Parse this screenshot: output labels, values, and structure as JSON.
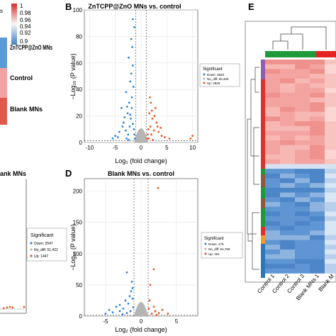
{
  "panels": {
    "a": {
      "legend_tick_top": "1",
      "legend_ticks": [
        "0.98",
        "0.96",
        "0.94",
        "0.92",
        "0.9"
      ],
      "legend_partial_label": "s",
      "group_labels": [
        "ZnTCPP@ZnO MNs",
        "Control",
        "Blank MNs"
      ],
      "colors": {
        "znt": "#5b9bd5",
        "control": "#f2a2a2",
        "blank": "#e05a4c"
      }
    },
    "b": {
      "letter": "B",
      "title": "ZnTCPP@ZnO MNs vs. control",
      "xlabel": "Log₂ (fold change)",
      "ylabel": "−Log₁₀ (P value)",
      "legend_title": "Significant",
      "legend_items": [
        "Down: 2828",
        "No_diff: 50,465",
        "Up: 2828"
      ]
    },
    "c": {
      "title_partial": "ank MNs",
      "legend_title": "Significant",
      "legend_items": [
        "Down: 3547",
        "No_diff: 51,422",
        "Up: 1447"
      ]
    },
    "d": {
      "letter": "D",
      "title": "Blank MNs vs. control",
      "xlabel": "Log₂ (fold change)",
      "ylabel": "−Log₁₀ (P value)",
      "legend_title": "Significant",
      "legend_items": [
        "Down: 476",
        "No_diff: 54,789",
        "Up: 151"
      ]
    },
    "e": {
      "letter": "E",
      "column_labels": [
        "Control 1",
        "Control 2",
        "Control 3",
        "Blank MNs 1",
        "Blank M"
      ]
    }
  },
  "colors": {
    "down": "#2b83d6",
    "no_diff": "#b5b5b5",
    "up": "#e8561e",
    "heat_high": "#f4a4a0",
    "heat_low": "#5f95d2"
  },
  "chart_data": [
    {
      "type": "scatter",
      "panel": "B",
      "title": "ZnTCPP@ZnO MNs vs. control",
      "xlabel": "Log₂ (fold change)",
      "ylabel": "−Log₁₀ (P value)",
      "xlim": [
        -11,
        11
      ],
      "ylim": [
        0,
        100
      ],
      "xticks": [
        -10,
        -5,
        0,
        5,
        10
      ],
      "yticks": [
        0,
        20,
        40,
        60,
        80,
        100
      ],
      "thresholds": {
        "x": [
          -1,
          1
        ],
        "y": 1.3
      },
      "series": [
        {
          "name": "Down: 2828",
          "points": [
            [
              -2.8,
              3
            ],
            [
              -2.5,
              6
            ],
            [
              -3,
              9
            ],
            [
              -2.2,
              12
            ],
            [
              -3.4,
              15
            ],
            [
              -2,
              18
            ],
            [
              -2.6,
              22
            ],
            [
              -3.8,
              26
            ],
            [
              -2.3,
              30
            ],
            [
              -1.8,
              34
            ],
            [
              -2.9,
              38
            ],
            [
              -1.5,
              42
            ],
            [
              -2.1,
              46
            ],
            [
              -1.9,
              52
            ],
            [
              -1.6,
              58
            ],
            [
              -2.4,
              64
            ],
            [
              -1.7,
              72
            ],
            [
              -1.9,
              78
            ],
            [
              -1.3,
              87
            ],
            [
              -1.6,
              93
            ],
            [
              -5,
              5
            ],
            [
              -4.2,
              8
            ],
            [
              -3.6,
              12
            ],
            [
              -4.5,
              4
            ],
            [
              -5.5,
              3
            ],
            [
              -3.2,
              19
            ],
            [
              -2.7,
              27
            ],
            [
              -2.1,
              21
            ],
            [
              -1.8,
              26
            ],
            [
              -1.6,
              14
            ],
            [
              -1.4,
              10
            ],
            [
              -1.3,
              6
            ],
            [
              -1.2,
              3
            ],
            [
              -2.4,
              2
            ]
          ]
        },
        {
          "name": "Up: 2828",
          "points": [
            [
              1.5,
              3
            ],
            [
              2,
              6
            ],
            [
              2.5,
              9
            ],
            [
              1.8,
              12
            ],
            [
              3,
              15
            ],
            [
              2.2,
              18
            ],
            [
              1.6,
              22
            ],
            [
              2.8,
              26
            ],
            [
              1.9,
              30
            ],
            [
              1.7,
              34
            ],
            [
              3.4,
              8
            ],
            [
              4,
              5
            ],
            [
              4.6,
              4
            ],
            [
              2.6,
              20
            ],
            [
              3.2,
              12
            ],
            [
              1.4,
              10
            ],
            [
              1.3,
              6
            ],
            [
              1.2,
              3
            ],
            [
              2.3,
              2
            ],
            [
              3.8,
              11
            ],
            [
              5.5,
              3
            ],
            [
              10,
              5
            ],
            [
              9.6,
              3
            ],
            [
              2.1,
              24
            ]
          ]
        },
        {
          "name": "No_diff: 50,465",
          "points": [
            [
              0,
              0.2
            ],
            [
              0.4,
              0.8
            ],
            [
              -0.4,
              0.8
            ],
            [
              0.7,
              1.2
            ],
            [
              -0.7,
              1.2
            ],
            [
              0.2,
              1.6
            ],
            [
              -0.2,
              1.6
            ],
            [
              0.9,
              0.5
            ],
            [
              -0.9,
              0.5
            ],
            [
              0.5,
              0.3
            ],
            [
              -0.5,
              0.3
            ]
          ]
        }
      ]
    },
    {
      "type": "scatter",
      "panel": "D",
      "title": "Blank MNs vs. control",
      "xlabel": "Log₂ (fold change)",
      "ylabel": "−Log₁₀ (P value)",
      "xlim": [
        -8,
        8
      ],
      "ylim": [
        0,
        220
      ],
      "xticks": [
        -5,
        0,
        5
      ],
      "yticks": [
        0,
        50,
        100,
        150,
        200
      ],
      "thresholds": {
        "x": [
          -1,
          1
        ],
        "y": 1.3
      },
      "series": [
        {
          "name": "Down: 476",
          "points": [
            [
              -2,
              5
            ],
            [
              -3,
              8
            ],
            [
              -2.5,
              12
            ],
            [
              -4,
              6
            ],
            [
              -3.5,
              15
            ],
            [
              -1.8,
              20
            ],
            [
              -2.2,
              25
            ],
            [
              -1.6,
              32
            ],
            [
              -1.4,
              40
            ],
            [
              -1.3,
              55
            ],
            [
              -2,
              70
            ],
            [
              -1.2,
              45
            ],
            [
              -1.1,
              14
            ],
            [
              -5,
              4
            ],
            [
              -4.5,
              10
            ],
            [
              -3,
              18
            ],
            [
              -2.6,
              3
            ],
            [
              -1.5,
              8
            ],
            [
              -1.2,
              28
            ]
          ]
        },
        {
          "name": "Up: 151",
          "points": [
            [
              1.5,
              4
            ],
            [
              2,
              8
            ],
            [
              2.5,
              5
            ],
            [
              3,
              10
            ],
            [
              1.8,
              15
            ],
            [
              1.2,
              25
            ],
            [
              1.3,
              50
            ],
            [
              1.8,
              75
            ],
            [
              2.4,
              205
            ],
            [
              1.1,
              12
            ],
            [
              3.8,
              4
            ],
            [
              2.2,
              2
            ]
          ]
        },
        {
          "name": "No_diff: 54,789",
          "points": [
            [
              0,
              0.3
            ],
            [
              0.4,
              0.9
            ],
            [
              -0.4,
              0.9
            ],
            [
              0.8,
              0.6
            ],
            [
              -0.8,
              0.6
            ],
            [
              0.2,
              1.2
            ],
            [
              -0.2,
              1.2
            ]
          ]
        }
      ]
    },
    {
      "type": "heatmap",
      "panel": "E",
      "columns": [
        "Control 1",
        "Control 2",
        "Control 3",
        "Blank MNs 1",
        "Blank M"
      ],
      "row_groups": [
        {
          "rows": 22,
          "level": "high"
        },
        {
          "rows": 1,
          "level": "mid"
        },
        {
          "rows": 22,
          "level": "low"
        }
      ],
      "value_range": [
        0.9,
        1
      ]
    }
  ]
}
